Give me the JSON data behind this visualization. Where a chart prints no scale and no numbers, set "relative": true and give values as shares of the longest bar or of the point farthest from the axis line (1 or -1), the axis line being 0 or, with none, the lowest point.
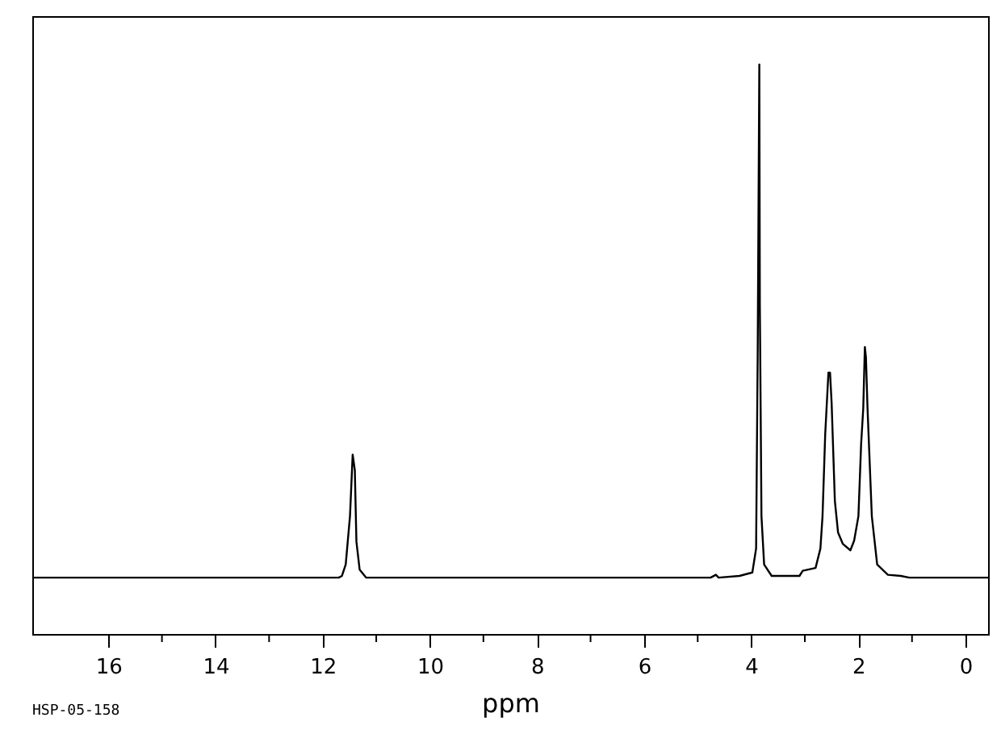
{
  "chart_data": {
    "type": "line",
    "relative": true,
    "xlabel": "ppm",
    "annotations": [
      "HSP-05-158"
    ],
    "xlim": [
      17.42,
      -0.42
    ],
    "xticks": [
      16,
      {
        "value": 15,
        "label": null
      },
      14,
      {
        "value": 13,
        "label": null
      },
      12,
      {
        "value": 11,
        "label": null
      },
      10,
      {
        "value": 9,
        "label": null
      },
      8,
      {
        "value": 7,
        "label": null
      },
      6,
      {
        "value": 5,
        "label": null
      },
      4,
      {
        "value": 3,
        "label": null
      },
      2,
      {
        "value": 1,
        "label": null
      },
      0
    ],
    "grid": false,
    "tick_labels": "x",
    "marker": "none",
    "line_style": "solid",
    "x": [
      17.42,
      11.7,
      11.64,
      11.57,
      11.49,
      11.44,
      11.4,
      11.37,
      11.31,
      11.19,
      4.76,
      4.66,
      4.61,
      4.22,
      3.98,
      3.91,
      3.88,
      3.85,
      3.84,
      3.81,
      3.76,
      3.62,
      3.1,
      3.04,
      2.8,
      2.71,
      2.67,
      2.62,
      2.56,
      2.53,
      2.5,
      2.44,
      2.38,
      2.29,
      2.15,
      2.08,
      2.0,
      1.95,
      1.91,
      1.88,
      1.86,
      1.83,
      1.75,
      1.65,
      1.45,
      1.21,
      1.05,
      -0.42
    ],
    "series": [
      {
        "color": "#000000",
        "values": [
          0.099,
          0.099,
          0.102,
          0.122,
          0.207,
          0.315,
          0.288,
          0.162,
          0.113,
          0.099,
          0.099,
          0.104,
          0.099,
          0.102,
          0.108,
          0.15,
          0.495,
          1.0,
          0.577,
          0.207,
          0.122,
          0.102,
          0.102,
          0.111,
          0.116,
          0.15,
          0.207,
          0.351,
          0.459,
          0.459,
          0.405,
          0.234,
          0.178,
          0.158,
          0.147,
          0.164,
          0.207,
          0.333,
          0.396,
          0.504,
          0.486,
          0.396,
          0.207,
          0.122,
          0.104,
          0.102,
          0.099,
          0.099
        ]
      }
    ]
  }
}
